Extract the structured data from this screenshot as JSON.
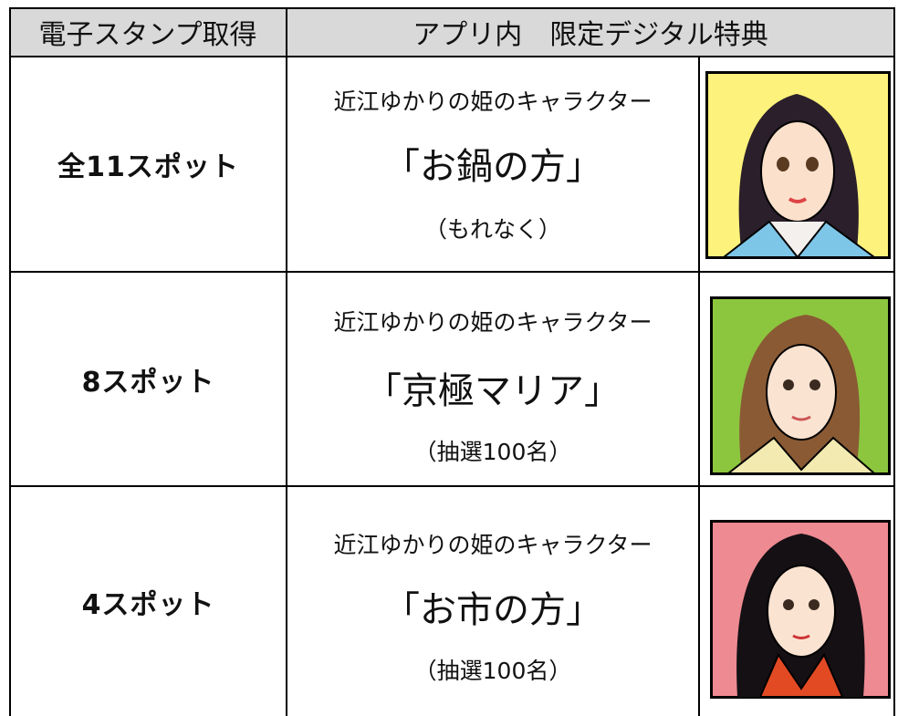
{
  "table": {
    "header": [
      "電子スタンプ取得",
      "アプリ内　限定デジタル特典"
    ],
    "rows": [
      {
        "spots": "全11スポット",
        "line1": "近江ゆかりの姫のキャラクター",
        "name": "「お鍋の方」",
        "note": "（もれなく）"
      },
      {
        "spots": "8スポット",
        "line1": "近江ゆかりの姫のキャラクター",
        "name": "「京極マリア」",
        "note": "（抽選100名）"
      },
      {
        "spots": "4スポット",
        "line1": "近江ゆかりの姫のキャラクター",
        "name": "「お市の方」",
        "note": "（抽選100名）"
      }
    ]
  }
}
